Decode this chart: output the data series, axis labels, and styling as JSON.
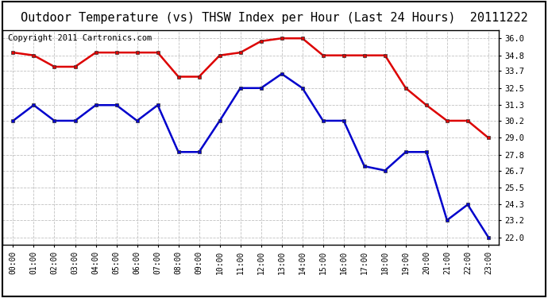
{
  "title": "Outdoor Temperature (vs) THSW Index per Hour (Last 24 Hours)  20111222",
  "copyright": "Copyright 2011 Cartronics.com",
  "red_data": [
    35.0,
    34.8,
    34.0,
    34.0,
    35.0,
    35.0,
    35.0,
    35.0,
    33.3,
    33.3,
    34.8,
    35.0,
    35.8,
    36.0,
    36.0,
    34.8,
    34.8,
    34.8,
    34.8,
    32.5,
    31.3,
    30.2,
    30.2,
    29.0
  ],
  "blue_data": [
    30.2,
    31.3,
    30.2,
    30.2,
    31.3,
    31.3,
    30.2,
    31.3,
    28.0,
    28.0,
    30.2,
    32.5,
    32.5,
    33.5,
    32.5,
    30.2,
    30.2,
    27.0,
    26.7,
    28.0,
    28.0,
    23.2,
    24.3,
    22.0
  ],
  "yticks": [
    22.0,
    23.2,
    24.3,
    25.5,
    26.7,
    27.8,
    29.0,
    30.2,
    31.3,
    32.5,
    33.7,
    34.8,
    36.0
  ],
  "ylim": [
    21.5,
    36.6
  ],
  "background_color": "#ffffff",
  "grid_color": "#bbbbbb",
  "red_color": "#dd0000",
  "blue_color": "#0000cc",
  "title_fontsize": 11,
  "copyright_fontsize": 7.5
}
